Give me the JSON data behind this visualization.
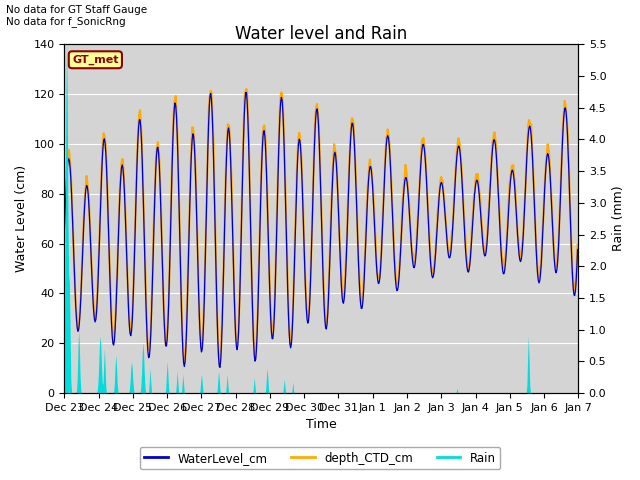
{
  "title": "Water level and Rain",
  "xlabel": "Time",
  "ylabel_left": "Water Level (cm)",
  "ylabel_right": "Rain (mm)",
  "annotation_top": "No data for GT Staff Gauge\nNo data for f_SonicRng",
  "gt_met_label": "GT_met",
  "ylim_left": [
    0,
    140
  ],
  "ylim_right": [
    0,
    5.5
  ],
  "yticks_left": [
    0,
    20,
    40,
    60,
    80,
    100,
    120,
    140
  ],
  "yticks_right": [
    0.0,
    0.5,
    1.0,
    1.5,
    2.0,
    2.5,
    3.0,
    3.5,
    4.0,
    4.5,
    5.0,
    5.5
  ],
  "legend_labels": [
    "WaterLevel_cm",
    "depth_CTD_cm",
    "Rain"
  ],
  "line_color_water": "#0000cc",
  "line_color_ctd": "#ffaa00",
  "bar_color_rain": "#00dddd",
  "background_color": "#d4d4d4",
  "fig_background": "#ffffff",
  "grid_color": "#ffffff",
  "title_fontsize": 12,
  "label_fontsize": 9,
  "tick_fontsize": 8
}
